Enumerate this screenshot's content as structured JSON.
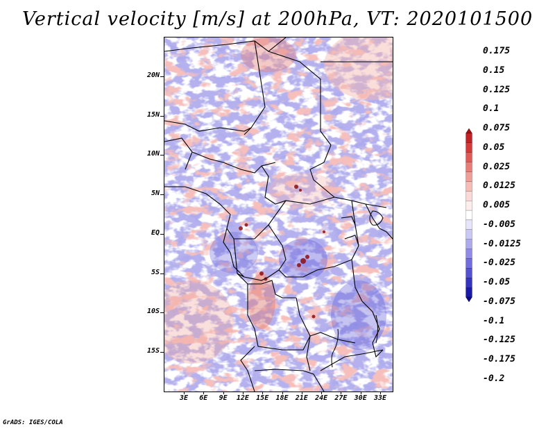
{
  "title": "Vertical velocity [m/s] at 200hPa, VT: 2020101500",
  "latitude_labels": [
    "20N",
    "15N",
    "10N",
    "5N",
    "EQ",
    "5S",
    "10S",
    "15S"
  ],
  "longitude_labels": [
    "3E",
    "6E",
    "9E",
    "12E",
    "15E",
    "18E",
    "21E",
    "24E",
    "27E",
    "30E",
    "33E"
  ],
  "colorbar": {
    "levels": [
      "0.175",
      "0.15",
      "0.125",
      "0.1",
      "0.075",
      "0.05",
      "0.025",
      "0.0125",
      "0.005",
      "-0.005",
      "-0.0125",
      "-0.025",
      "-0.05",
      "-0.075",
      "-0.1",
      "-0.125",
      "-0.175",
      "-0.2"
    ],
    "colors": [
      "#a50f15",
      "#c02228",
      "#d33a3a",
      "#e05a57",
      "#e97d78",
      "#f09e98",
      "#f6bdb8",
      "#fbd9d6",
      "#fdeeec",
      "#ffffff",
      "#e6e5fb",
      "#cac8f4",
      "#adaaee",
      "#8f8be6",
      "#716dde",
      "#5451d2",
      "#3534c0",
      "#1b1aa8",
      "#0a0a8a"
    ]
  },
  "credit": "GrADS: IGES/COLA"
}
